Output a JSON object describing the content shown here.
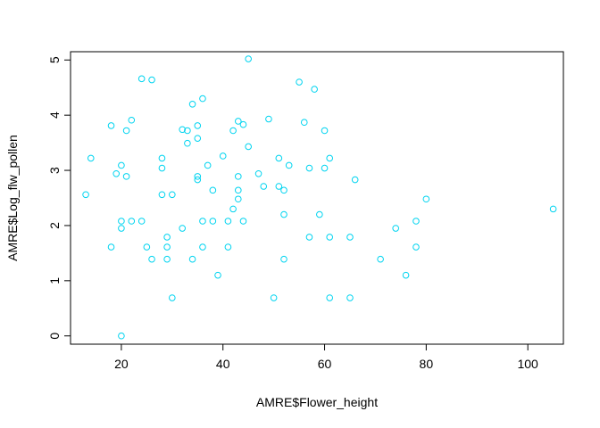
{
  "chart_data": {
    "type": "scatter",
    "xlabel": "AMRE$Flower_height",
    "ylabel": "AMRE$Log_flw_pollen",
    "xlim": [
      10,
      107
    ],
    "ylim": [
      -0.15,
      5.15
    ],
    "x_ticks": [
      20,
      40,
      60,
      80,
      100
    ],
    "y_ticks": [
      0,
      1,
      2,
      3,
      4,
      5
    ],
    "x_tick_labels": [
      "20",
      "40",
      "60",
      "80",
      "100"
    ],
    "y_tick_labels": [
      "0",
      "1",
      "2",
      "3",
      "4",
      "5"
    ],
    "grid": false,
    "point_color": "#00d4f0",
    "points": [
      [
        13,
        2.56
      ],
      [
        14,
        3.22
      ],
      [
        18,
        1.61
      ],
      [
        18,
        3.81
      ],
      [
        19,
        2.94
      ],
      [
        20,
        1.95
      ],
      [
        20,
        2.08
      ],
      [
        20,
        3.09
      ],
      [
        20,
        0.0
      ],
      [
        21,
        2.89
      ],
      [
        21,
        3.72
      ],
      [
        22,
        2.08
      ],
      [
        22,
        3.91
      ],
      [
        24,
        2.08
      ],
      [
        24,
        4.66
      ],
      [
        25,
        1.61
      ],
      [
        26,
        1.39
      ],
      [
        26,
        4.64
      ],
      [
        28,
        2.56
      ],
      [
        28,
        3.04
      ],
      [
        28,
        3.22
      ],
      [
        29,
        1.39
      ],
      [
        29,
        1.61
      ],
      [
        29,
        1.79
      ],
      [
        30,
        0.69
      ],
      [
        30,
        2.56
      ],
      [
        32,
        1.95
      ],
      [
        32,
        3.74
      ],
      [
        33,
        3.49
      ],
      [
        33,
        3.72
      ],
      [
        34,
        1.39
      ],
      [
        34,
        4.2
      ],
      [
        35,
        2.83
      ],
      [
        35,
        2.89
      ],
      [
        35,
        3.58
      ],
      [
        35,
        3.81
      ],
      [
        36,
        1.61
      ],
      [
        36,
        2.08
      ],
      [
        36,
        4.3
      ],
      [
        37,
        3.09
      ],
      [
        38,
        2.08
      ],
      [
        38,
        2.64
      ],
      [
        39,
        1.1
      ],
      [
        40,
        3.26
      ],
      [
        41,
        1.61
      ],
      [
        41,
        2.08
      ],
      [
        42,
        2.3
      ],
      [
        42,
        3.72
      ],
      [
        43,
        2.48
      ],
      [
        43,
        2.64
      ],
      [
        43,
        2.89
      ],
      [
        43,
        3.89
      ],
      [
        44,
        2.08
      ],
      [
        44,
        3.83
      ],
      [
        45,
        3.43
      ],
      [
        45,
        5.02
      ],
      [
        47,
        2.94
      ],
      [
        48,
        2.71
      ],
      [
        49,
        3.93
      ],
      [
        50,
        0.69
      ],
      [
        51,
        2.71
      ],
      [
        51,
        3.22
      ],
      [
        52,
        1.39
      ],
      [
        52,
        2.2
      ],
      [
        52,
        2.64
      ],
      [
        53,
        3.09
      ],
      [
        55,
        4.6
      ],
      [
        56,
        3.87
      ],
      [
        57,
        1.79
      ],
      [
        57,
        3.04
      ],
      [
        58,
        4.47
      ],
      [
        59,
        2.2
      ],
      [
        60,
        3.04
      ],
      [
        60,
        3.72
      ],
      [
        61,
        0.69
      ],
      [
        61,
        1.79
      ],
      [
        61,
        3.22
      ],
      [
        65,
        0.69
      ],
      [
        65,
        1.79
      ],
      [
        66,
        2.83
      ],
      [
        71,
        1.39
      ],
      [
        74,
        1.95
      ],
      [
        76,
        1.1
      ],
      [
        78,
        1.61
      ],
      [
        78,
        2.08
      ],
      [
        80,
        2.48
      ],
      [
        105,
        2.3
      ]
    ]
  }
}
